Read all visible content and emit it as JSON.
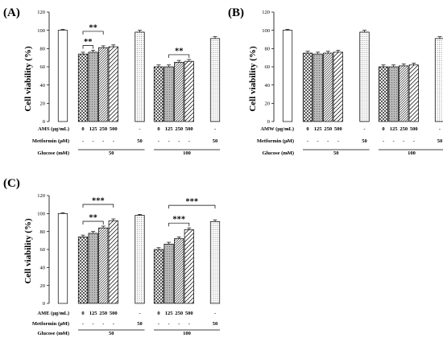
{
  "panels": [
    {
      "id": "A",
      "label": "(A)",
      "ylabel": "Cell viability (%)",
      "treatment_label": "AMS (μg/mL)",
      "metformin_label": "Metformin (μM)",
      "glucose_label": "Glucose (mM)",
      "bracket_groups": [
        {
          "lines": [
            {
              "from": 1,
              "to": 3,
              "text": "**"
            },
            {
              "from": 1,
              "to": 2,
              "text": "**"
            }
          ]
        },
        {
          "lines": [
            {
              "from": 7,
              "to": 9,
              "text": "**"
            }
          ]
        }
      ]
    },
    {
      "id": "B",
      "label": "(B)",
      "ylabel": "Cell viability (%)",
      "treatment_label": "AMW (μg/mL)",
      "metformin_label": "Metformin (μM)",
      "glucose_label": "Glucose (mM)",
      "bracket_groups": []
    },
    {
      "id": "C",
      "label": "(C)",
      "ylabel": "Cell viability (%)",
      "treatment_label": "AME (μg/mL)",
      "metformin_label": "Metformin (μM)",
      "glucose_label": "Glucose (mM)",
      "bracket_groups": [
        {
          "lines": [
            {
              "from": 1,
              "to": 4,
              "text": "***"
            },
            {
              "from": 1,
              "to": 3,
              "text": "**"
            }
          ]
        },
        {
          "lines": [
            {
              "from": 7,
              "to": 10,
              "text": "***"
            },
            {
              "from": 7,
              "to": 9,
              "text": "***"
            }
          ]
        }
      ]
    }
  ],
  "table": {
    "treatment_values": [
      "-",
      "0",
      "125",
      "250",
      "500",
      "-",
      "0",
      "125",
      "250",
      "500",
      "-"
    ],
    "metformin_values": [
      "-",
      "-",
      "-",
      "-",
      "-",
      "50",
      "-",
      "-",
      "-",
      "-",
      "50"
    ],
    "glucose_values": [
      "-",
      "50",
      "100"
    ]
  },
  "chart_data": [
    {
      "type": "bar",
      "panel": "A",
      "title": "",
      "ylabel": "Cell viability (%)",
      "ylim": [
        0,
        120
      ],
      "yticks": [
        0,
        20,
        40,
        60,
        80,
        100,
        120
      ],
      "categories": [
        "-/-/-",
        "0/-/50",
        "125/-/50",
        "250/-/50",
        "500/-/50",
        "-/50/50",
        "0/-/100",
        "125/-/100",
        "250/-/100",
        "500/-/100",
        "-/50/100"
      ],
      "values": [
        100,
        74,
        76,
        81,
        82,
        98,
        60,
        60,
        65,
        66,
        91
      ],
      "errors": [
        1,
        2,
        2,
        2,
        2,
        2,
        2,
        2,
        2,
        2,
        2
      ],
      "patterns": [
        "open",
        "cross",
        "gray",
        "fine-diag",
        "diag",
        "dots",
        "cross",
        "gray",
        "fine-diag",
        "diag",
        "dots"
      ]
    },
    {
      "type": "bar",
      "panel": "B",
      "title": "",
      "ylabel": "Cell viability (%)",
      "ylim": [
        0,
        120
      ],
      "yticks": [
        0,
        20,
        40,
        60,
        80,
        100,
        120
      ],
      "categories": [
        "-/-/-",
        "0/-/50",
        "125/-/50",
        "250/-/50",
        "500/-/50",
        "-/50/50",
        "0/-/100",
        "125/-/100",
        "250/-/100",
        "500/-/100",
        "-/50/100"
      ],
      "values": [
        100,
        75,
        74,
        75,
        76,
        98,
        60,
        60,
        61,
        62,
        91
      ],
      "errors": [
        1,
        2,
        2,
        2,
        2,
        2,
        2,
        2,
        2,
        2,
        2
      ],
      "patterns": [
        "open",
        "cross",
        "gray",
        "fine-diag",
        "diag",
        "dots",
        "cross",
        "gray",
        "fine-diag",
        "diag",
        "dots"
      ]
    },
    {
      "type": "bar",
      "panel": "C",
      "title": "",
      "ylabel": "Cell viability (%)",
      "ylim": [
        0,
        120
      ],
      "yticks": [
        0,
        20,
        40,
        60,
        80,
        100,
        120
      ],
      "categories": [
        "-/-/-",
        "0/-/50",
        "125/-/50",
        "250/-/50",
        "500/-/50",
        "-/50/50",
        "0/-/100",
        "125/-/100",
        "250/-/100",
        "500/-/100",
        "-/50/100"
      ],
      "values": [
        100,
        74,
        78,
        84,
        92,
        98,
        60,
        66,
        72,
        82,
        91
      ],
      "errors": [
        1,
        2,
        2,
        2,
        2,
        1,
        2,
        2,
        2,
        2,
        2
      ],
      "patterns": [
        "open",
        "cross",
        "gray",
        "fine-diag",
        "diag",
        "dots",
        "cross",
        "gray",
        "fine-diag",
        "diag",
        "dots"
      ]
    }
  ]
}
